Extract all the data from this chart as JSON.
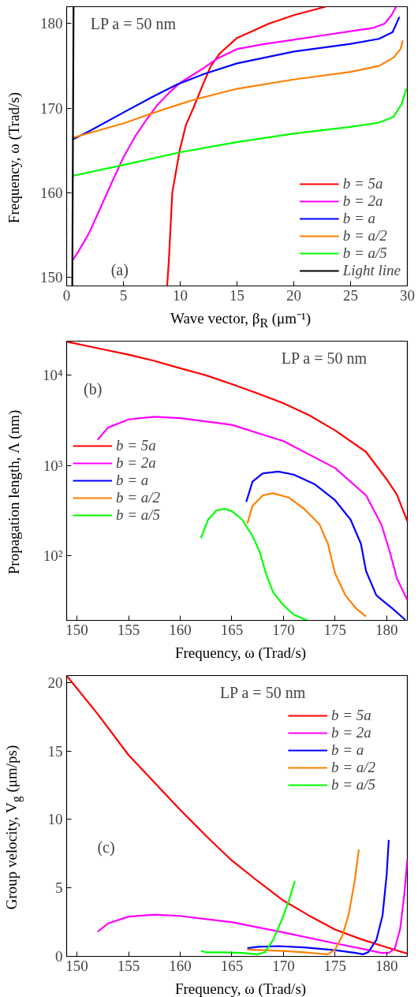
{
  "chart_data": [
    {
      "type": "line",
      "xlabel": "Wave vector, β$_{R}$ (μm⁻¹)",
      "ylabel": "Frequency, ω (Trad/s)",
      "xlim": [
        0,
        30
      ],
      "ylim": [
        149,
        182
      ],
      "xticks": [
        0,
        5,
        10,
        15,
        20,
        25,
        30
      ],
      "yticks": [
        150,
        160,
        170,
        180
      ],
      "legend": "bottom right",
      "annotations": [
        "LP a = 50 nm",
        "(a)"
      ],
      "series": [
        {
          "name": "b = 5a",
          "color": "#ff0000",
          "x": [
            8.85,
            9.0,
            9.3,
            9.95,
            10.5,
            11.15,
            12,
            12.7,
            13.5,
            15,
            17.8,
            20,
            22.8
          ],
          "values": [
            149,
            152,
            160,
            165,
            168,
            170,
            172.8,
            175,
            176.5,
            178.3,
            180,
            181,
            182
          ]
        },
        {
          "name": "b = 2a",
          "color": "#ff00ff",
          "x": [
            0.5,
            1,
            2,
            3,
            4,
            5,
            6,
            7,
            8,
            9,
            10,
            12,
            13.3,
            15,
            17.5,
            20,
            22.5,
            25,
            27,
            28,
            28.6,
            29
          ],
          "values": [
            152,
            153,
            155.3,
            158.3,
            161.3,
            164.2,
            166.6,
            168.6,
            170.4,
            171.8,
            173,
            174.7,
            175.9,
            177,
            177.6,
            178.1,
            178.6,
            179.1,
            179.5,
            180,
            181,
            182
          ]
        },
        {
          "name": "b = a",
          "color": "#0000ff",
          "x": [
            0.5,
            2,
            5,
            7.5,
            9.7,
            12,
            15,
            17.5,
            20,
            25,
            27.5,
            28.7,
            29.3
          ],
          "values": [
            166.3,
            167.3,
            169.5,
            171.3,
            172.8,
            174,
            175.3,
            176,
            176.7,
            177.6,
            178.2,
            179,
            180.8
          ]
        },
        {
          "name": "b = a/2",
          "color": "#ff8000",
          "x": [
            0.5,
            5,
            7.3,
            10,
            11.2,
            15,
            20,
            25,
            27.5,
            28.8,
            29.4,
            29.6
          ],
          "values": [
            166.5,
            168.2,
            169.3,
            170.5,
            171,
            172.3,
            173.4,
            174.3,
            175,
            176,
            177,
            178
          ]
        },
        {
          "name": "b = a/5",
          "color": "#00ff00",
          "x": [
            0.5,
            5,
            10,
            15,
            20,
            25,
            27.5,
            28.8,
            29.5,
            29.9
          ],
          "values": [
            162,
            163.3,
            164.8,
            166,
            167,
            167.8,
            168.3,
            169,
            170.5,
            172.3
          ]
        },
        {
          "name": "Light line",
          "color": "#000000",
          "x": [
            0.497,
            0.607
          ],
          "values": [
            149,
            182
          ]
        }
      ]
    },
    {
      "type": "line",
      "log": true,
      "xlabel": "Frequency, ω (Trad/s)",
      "ylabel": "Propagation length, Λ (nm)",
      "xlim": [
        149,
        182
      ],
      "ylim": [
        19,
        24000
      ],
      "xticks": [
        150,
        155,
        160,
        165,
        170,
        175,
        180
      ],
      "yticks": [
        {
          "value": 100,
          "label": "10²"
        },
        {
          "value": 1000,
          "label": "10³"
        },
        {
          "value": 10000,
          "label": "10⁴"
        }
      ],
      "legend": "left",
      "annotations": [
        "LP a = 50 nm",
        "(b)"
      ],
      "series": [
        {
          "name": "b = 5a",
          "color": "#ff0000",
          "x": [
            149,
            152,
            155,
            157.5,
            160,
            162.5,
            165,
            167.5,
            170,
            172.5,
            175,
            178,
            180,
            181,
            182
          ],
          "values": [
            23700,
            20000,
            17000,
            14500,
            12000,
            10000,
            8000,
            6300,
            4900,
            3600,
            2450,
            1410,
            700,
            470,
            240
          ]
        },
        {
          "name": "b = 2a",
          "color": "#ff00ff",
          "x": [
            152,
            153,
            155,
            157.5,
            160,
            165,
            170,
            175,
            178,
            179.5,
            180.3,
            181,
            182
          ],
          "values": [
            1930,
            2630,
            3240,
            3470,
            3350,
            2820,
            1860,
            935,
            465,
            218,
            110,
            55,
            32
          ]
        },
        {
          "name": "b = a",
          "color": "#0000ff",
          "x": [
            166.4,
            167,
            168,
            169.5,
            171,
            173,
            175,
            176.5,
            177.5,
            178,
            179,
            180.5,
            181.8
          ],
          "values": [
            394,
            660,
            815,
            855,
            790,
            620,
            410,
            250,
            135,
            67,
            36,
            26,
            19.3
          ]
        },
        {
          "name": "b = a/2",
          "color": "#ff8000",
          "x": [
            166.5,
            167,
            168,
            169,
            170.5,
            172,
            173.5,
            174.3,
            175,
            176,
            177,
            178
          ],
          "values": [
            226,
            355,
            465,
            490,
            440,
            330,
            220,
            135,
            63,
            36,
            26,
            21
          ]
        },
        {
          "name": "b = a/5",
          "color": "#00ff00",
          "x": [
            162,
            162.7,
            163.5,
            164.3,
            165,
            166,
            167,
            167.7,
            168.3,
            169,
            170,
            171,
            172.3
          ],
          "values": [
            155,
            250,
            316,
            330,
            310,
            250,
            165,
            110,
            63,
            39,
            28,
            22,
            19
          ]
        }
      ]
    },
    {
      "type": "line",
      "xlabel": "Frequency, ω (Trad/s)",
      "ylabel": "Group velocity, V$_{g}$ (μm/ps)",
      "xlim": [
        149,
        182
      ],
      "ylim": [
        0,
        20.5
      ],
      "xticks": [
        150,
        155,
        160,
        165,
        170,
        175,
        180
      ],
      "yticks": [
        0,
        5,
        10,
        15,
        20
      ],
      "legend": "top right",
      "annotations": [
        "LP a = 50 nm",
        "(c)"
      ],
      "series": [
        {
          "name": "b = 5a",
          "color": "#ff0000",
          "x": [
            149,
            152,
            155,
            157.5,
            160,
            162.5,
            165,
            167.5,
            170,
            172.5,
            175,
            177.5,
            180,
            182
          ],
          "values": [
            20.5,
            17.7,
            14.7,
            12.7,
            10.7,
            8.8,
            7.0,
            5.5,
            4.07,
            2.97,
            1.96,
            1.26,
            0.66,
            0.2
          ]
        },
        {
          "name": "b = 2a",
          "color": "#ff00ff",
          "x": [
            152,
            153,
            155,
            157.5,
            160,
            165,
            170,
            175,
            178,
            179.5,
            180.2,
            180.8,
            181.3,
            181.7,
            182
          ],
          "values": [
            1.8,
            2.4,
            2.9,
            3.05,
            2.95,
            2.5,
            1.75,
            0.95,
            0.5,
            0.25,
            0.25,
            0.6,
            2,
            4.5,
            7.1
          ]
        },
        {
          "name": "b = a",
          "color": "#0000ff",
          "x": [
            166.5,
            167.5,
            169.5,
            172,
            175,
            177,
            177.7,
            178.2,
            179,
            179.6,
            180,
            180.2
          ],
          "values": [
            0.6,
            0.7,
            0.75,
            0.65,
            0.45,
            0.25,
            0.15,
            0.3,
            1.2,
            3,
            6,
            8.5
          ]
        },
        {
          "name": "b = a/2",
          "color": "#ff8000",
          "x": [
            166.5,
            168,
            170,
            172,
            173.5,
            174.3,
            175,
            175.7,
            176.3,
            176.9,
            177.3
          ],
          "values": [
            0.5,
            0.45,
            0.4,
            0.3,
            0.2,
            0.15,
            0.5,
            1.5,
            3,
            5.5,
            7.8
          ]
        },
        {
          "name": "b = a/5",
          "color": "#00ff00",
          "x": [
            162,
            162.5,
            164,
            166,
            167.5,
            168.2,
            169,
            169.8,
            170.5,
            171.1
          ],
          "values": [
            0.4,
            0.3,
            0.3,
            0.25,
            0.15,
            0.3,
            1.2,
            2.6,
            4,
            5.5
          ]
        }
      ]
    }
  ]
}
